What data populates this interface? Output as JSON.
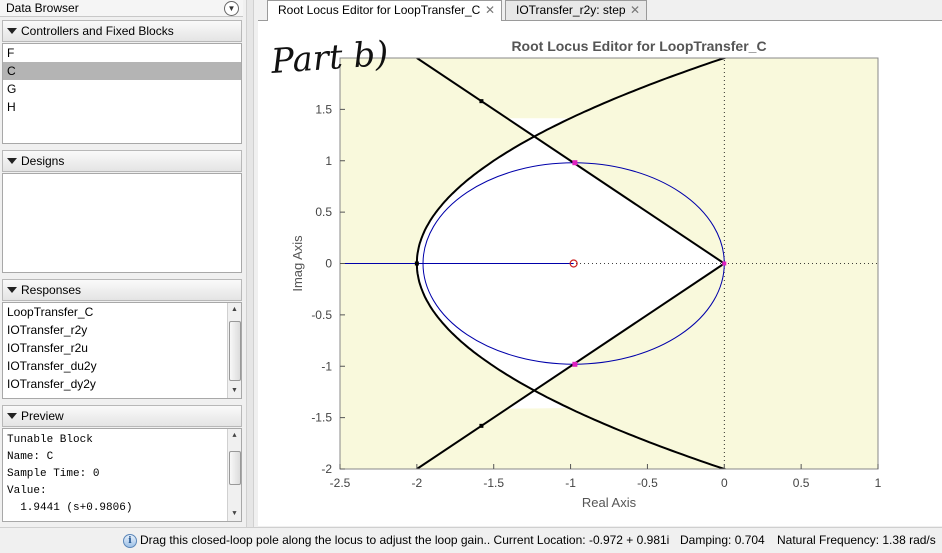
{
  "data_browser": {
    "title": "Data Browser",
    "controllers": {
      "header": "Controllers and Fixed Blocks",
      "items": [
        "F",
        "C",
        "G",
        "H"
      ],
      "selected": "C"
    },
    "designs": {
      "header": "Designs"
    },
    "responses": {
      "header": "Responses",
      "items": [
        "LoopTransfer_C",
        "IOTransfer_r2y",
        "IOTransfer_r2u",
        "IOTransfer_du2y",
        "IOTransfer_dy2y"
      ]
    },
    "preview": {
      "header": "Preview",
      "lines": [
        "Tunable Block",
        "Name: C",
        "Sample Time: 0",
        "Value:",
        "  1.9441 (s+0.9806)"
      ]
    }
  },
  "tabs": [
    {
      "label": "Root Locus Editor for LoopTransfer_C",
      "active": true
    },
    {
      "label": "IOTransfer_r2y: step",
      "active": false
    }
  ],
  "annotation": "Part b)",
  "plot": {
    "title": "Root Locus Editor for LoopTransfer_C",
    "xlabel": "Real Axis",
    "ylabel": "Imag Axis",
    "xlim": [
      -2.5,
      1
    ],
    "ylim": [
      -2,
      2
    ],
    "xticks": [
      -2.5,
      -2,
      -1.5,
      -1,
      -0.5,
      0,
      0.5,
      1
    ],
    "yticks": [
      -2,
      -1.5,
      -1,
      -0.5,
      0,
      0.5,
      1,
      1.5
    ],
    "colors": {
      "stable_region": "#ffffff",
      "unstable_shade": "#f9f9dc",
      "locus": "#000000",
      "damping_circle": "#0000aa",
      "closed_loop_pole": "#e020c0",
      "zero": "#cc2222"
    },
    "open_loop_zero": {
      "re": -0.98,
      "im": 0
    },
    "closed_loop_poles": [
      {
        "re": -0.972,
        "im": 0.981
      },
      {
        "re": -0.972,
        "im": -0.981
      }
    ],
    "locus_branch_points": [
      {
        "re": -2,
        "im": 0
      }
    ],
    "natural_frequency_circle_radius": 1.38,
    "damping_ratio": 0.704
  },
  "status": {
    "message": "Drag this closed-loop pole along the locus to adjust the loop gain.. Current Location: -0.972 + 0.981i",
    "damping": "Damping: 0.704",
    "natural_frequency": "Natural Frequency: 1.38 rad/s"
  }
}
